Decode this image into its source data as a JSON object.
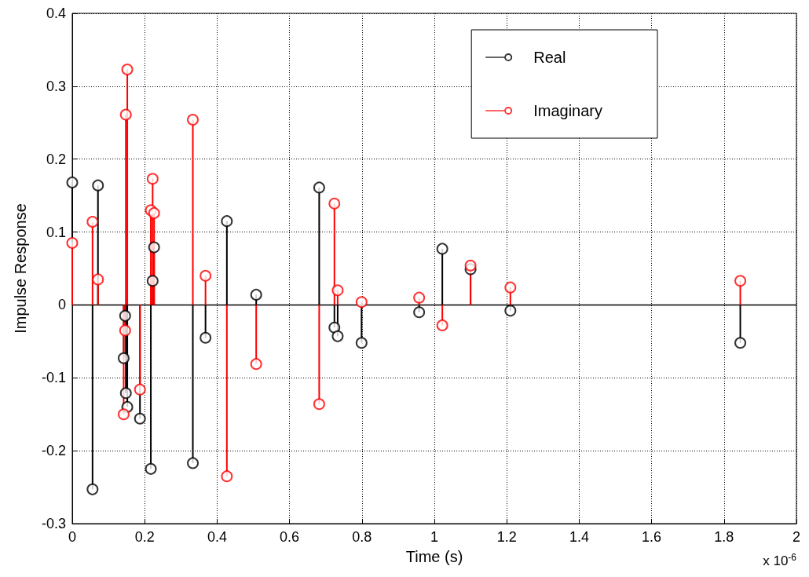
{
  "chart_data": {
    "type": "lollipop",
    "xlabel": "Time (s)",
    "ylabel": "Impulse Response",
    "annotations": [
      "x 10$^{-6}$"
    ],
    "x": [
      0,
      0.056,
      0.071,
      0.142,
      0.146,
      0.148,
      0.152,
      0.187,
      0.217,
      0.222,
      0.226,
      0.333,
      0.368,
      0.427,
      0.508,
      0.682,
      0.724,
      0.733,
      0.799,
      0.958,
      1.022,
      1.1,
      1.21,
      1.845
    ],
    "series": [
      {
        "name": "Real",
        "color": "#000000",
        "values": [
          0.168,
          -0.253,
          0.164,
          -0.073,
          -0.015,
          -0.121,
          -0.14,
          -0.156,
          -0.225,
          0.033,
          0.079,
          -0.217,
          -0.045,
          0.115,
          0.014,
          0.161,
          -0.031,
          -0.043,
          -0.052,
          -0.01,
          0.077,
          0.049,
          -0.008,
          -0.052
        ]
      },
      {
        "name": "Imaginary",
        "color": "#ff0000",
        "values": [
          0.085,
          0.114,
          0.035,
          -0.15,
          -0.035,
          0.261,
          0.323,
          -0.116,
          0.13,
          0.173,
          0.126,
          0.254,
          0.04,
          -0.235,
          -0.081,
          -0.136,
          0.139,
          0.02,
          0.004,
          0.01,
          -0.028,
          0.054,
          0.024,
          0.033
        ]
      }
    ],
    "xlim": [
      0,
      2
    ],
    "xticks": [
      0,
      0.2,
      0.4,
      0.6,
      0.8,
      1,
      1.2,
      1.4,
      1.6,
      1.8,
      2
    ],
    "ylim": [
      -0.3,
      0.4
    ],
    "yticks": [
      -0.3,
      -0.2,
      -0.1,
      0,
      0.1,
      0.2,
      0.3,
      0.4
    ],
    "grid": true,
    "legend": "top right",
    "marker": "circle",
    "line_style": "solid"
  }
}
